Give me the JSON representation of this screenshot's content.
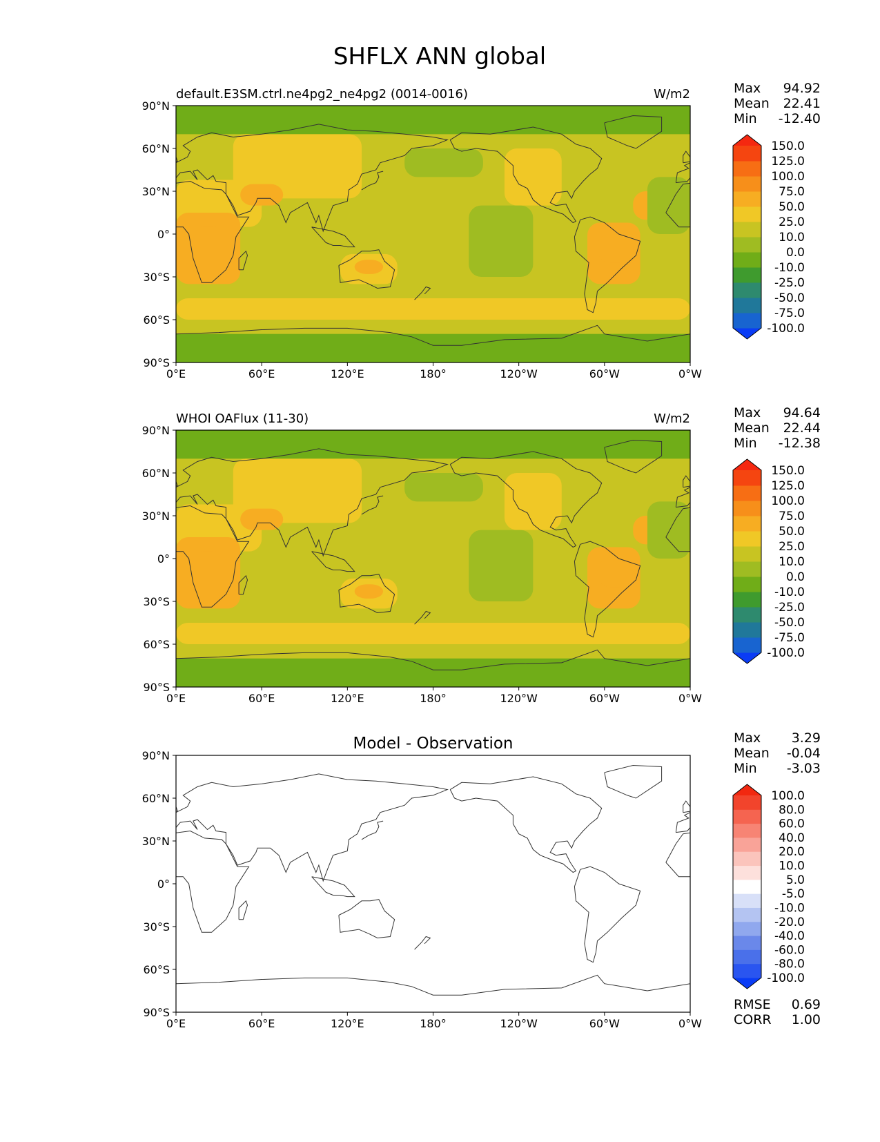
{
  "title": "SHFLX ANN global",
  "panels": [
    {
      "id": "test",
      "left_title": "default.E3SM.ctrl.ne4pg2_ne4pg2 (0014-0016)",
      "center_title": "",
      "units": "W/m2",
      "stats": [
        {
          "label": "Max",
          "value": "94.92"
        },
        {
          "label": "Mean",
          "value": "22.41"
        },
        {
          "label": "Min",
          "value": "-12.40"
        }
      ],
      "colorbar": {
        "colors": [
          "#0a3cf5",
          "#1864d0",
          "#20789a",
          "#2e8a6e",
          "#3f9b2e",
          "#70ad18",
          "#9fbc22",
          "#c8c422",
          "#f0c826",
          "#f7ad22",
          "#f78f1a",
          "#f76e14",
          "#f54510",
          "#f52810"
        ],
        "labels": [
          "-100.0",
          "-75.0",
          "-50.0",
          "-25.0",
          "-10.0",
          "0.0",
          "10.0",
          "25.0",
          "50.0",
          "75.0",
          "100.0",
          "125.0",
          "150.0"
        ]
      },
      "extra_stats": []
    },
    {
      "id": "reference",
      "left_title": "WHOI OAFlux (11-30)",
      "center_title": "",
      "units": "W/m2",
      "stats": [
        {
          "label": "Max",
          "value": "94.64"
        },
        {
          "label": "Mean",
          "value": "22.44"
        },
        {
          "label": "Min",
          "value": "-12.38"
        }
      ],
      "colorbar": {
        "colors": [
          "#0a3cf5",
          "#1864d0",
          "#20789a",
          "#2e8a6e",
          "#3f9b2e",
          "#70ad18",
          "#9fbc22",
          "#c8c422",
          "#f0c826",
          "#f7ad22",
          "#f78f1a",
          "#f76e14",
          "#f54510",
          "#f52810"
        ],
        "labels": [
          "-100.0",
          "-75.0",
          "-50.0",
          "-25.0",
          "-10.0",
          "0.0",
          "10.0",
          "25.0",
          "50.0",
          "75.0",
          "100.0",
          "125.0",
          "150.0"
        ]
      },
      "extra_stats": []
    },
    {
      "id": "difference",
      "left_title": "",
      "center_title": "Model - Observation",
      "units": "",
      "stats": [
        {
          "label": "Max",
          "value": "3.29"
        },
        {
          "label": "Mean",
          "value": "-0.04"
        },
        {
          "label": "Min",
          "value": "-3.03"
        }
      ],
      "colorbar": {
        "colors": [
          "#0a3cf5",
          "#2a55f0",
          "#4a70ea",
          "#6a88ea",
          "#90a8ee",
          "#b4c4f2",
          "#d8e0f8",
          "#ffffff",
          "#fde0dc",
          "#fbc4bc",
          "#f9a398",
          "#f78474",
          "#f56450",
          "#f2442c",
          "#f22810"
        ],
        "labels": [
          "-100.0",
          "-80.0",
          "-60.0",
          "-40.0",
          "-20.0",
          "-10.0",
          "-5.0",
          "5.0",
          "10.0",
          "20.0",
          "40.0",
          "60.0",
          "80.0",
          "100.0"
        ]
      },
      "extra_stats": [
        {
          "label": "RMSE",
          "value": "0.69"
        },
        {
          "label": "CORR",
          "value": "1.00"
        }
      ]
    }
  ],
  "x_ticks": [
    "0°E",
    "60°E",
    "120°E",
    "180°",
    "120°W",
    "60°W",
    "0°W"
  ],
  "y_ticks": [
    "90°N",
    "60°N",
    "30°N",
    "0°",
    "30°S",
    "60°S",
    "90°S"
  ],
  "field_palette": {
    "band_north": "#70ad18",
    "band_south": "#70ad18",
    "ocean": "#c8c422",
    "ocean_low": "#9fbc22",
    "warm": "#f0c826",
    "hot": "#f7ad22",
    "coast": "#333333"
  }
}
